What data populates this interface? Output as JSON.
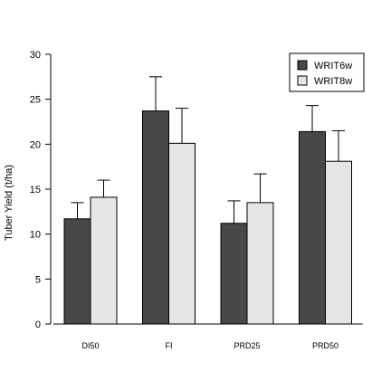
{
  "chart_data": {
    "type": "bar",
    "categories": [
      "DI50",
      "FI",
      "PRD25",
      "PRD50"
    ],
    "series": [
      {
        "name": "WRIT6w",
        "color": "#484848",
        "values": [
          11.7,
          23.7,
          11.2,
          21.4
        ],
        "errors": [
          1.8,
          3.8,
          2.5,
          2.9
        ]
      },
      {
        "name": "WRIT8w",
        "color": "#e5e5e5",
        "values": [
          14.1,
          20.1,
          13.5,
          18.1
        ],
        "errors": [
          1.9,
          3.9,
          3.2,
          3.4
        ]
      }
    ],
    "ylabel": "Tuber Yield (t/ha)",
    "xlabel": "",
    "ylim": [
      0,
      30
    ],
    "yticks": [
      0,
      5,
      10,
      15,
      20,
      25,
      30
    ],
    "legend_position": "top-right",
    "grid": false
  }
}
